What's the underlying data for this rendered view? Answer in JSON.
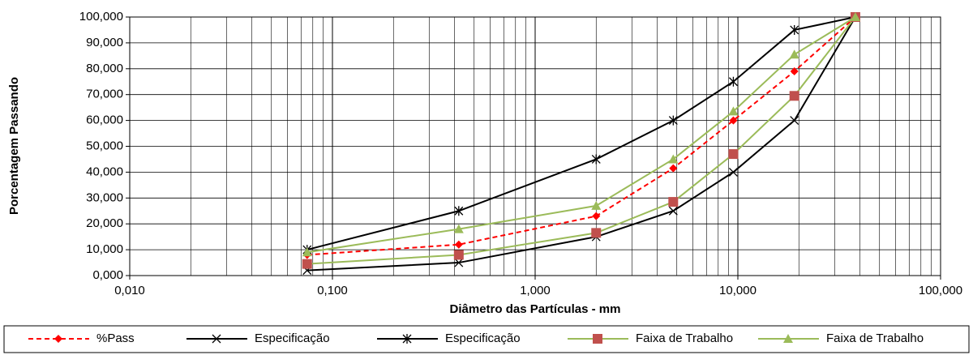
{
  "chart_data": {
    "type": "line",
    "xscale": "log",
    "xlabel": "Diâmetro das Partículas - mm",
    "ylabel": "Porcentagem Passando",
    "x": [
      0.075,
      0.42,
      2,
      4.8,
      9.5,
      19,
      38
    ],
    "xlim": [
      0.01,
      100
    ],
    "xticks": [
      {
        "value": 0.01,
        "label": "0,010"
      },
      {
        "value": 0.1,
        "label": "0,100"
      },
      {
        "value": 1,
        "label": "1,000"
      },
      {
        "value": 10,
        "label": "10,000"
      },
      {
        "value": 100,
        "label": "100,000"
      }
    ],
    "ylim": [
      0,
      100
    ],
    "yticks": [
      {
        "value": 0,
        "label": "0,000"
      },
      {
        "value": 10,
        "label": "10,000"
      },
      {
        "value": 20,
        "label": "20,000"
      },
      {
        "value": 30,
        "label": "30,000"
      },
      {
        "value": 40,
        "label": "40,000"
      },
      {
        "value": 50,
        "label": "50,000"
      },
      {
        "value": 60,
        "label": "60,000"
      },
      {
        "value": 70,
        "label": "70,000"
      },
      {
        "value": 80,
        "label": "80,000"
      },
      {
        "value": 90,
        "label": "90,000"
      },
      {
        "value": 100,
        "label": "100,000"
      }
    ],
    "grid": true,
    "minor_grid": true,
    "legend": "bottom",
    "series": [
      {
        "name": "%Pass",
        "color": "#ff0000",
        "marker": "diamond",
        "marker_color": "#ff0000",
        "linestyle": "dashed",
        "values": [
          8,
          12,
          23,
          41.5,
          60,
          79,
          100
        ]
      },
      {
        "name": "Especificação",
        "color": "#000000",
        "marker": "x",
        "marker_color": "#000000",
        "linestyle": "solid",
        "values": [
          2,
          5,
          15,
          25,
          40,
          60,
          100
        ]
      },
      {
        "name": "Especificação",
        "color": "#000000",
        "marker": "star",
        "marker_color": "#000000",
        "linestyle": "solid",
        "values": [
          10,
          25,
          45,
          60,
          75,
          95,
          100
        ]
      },
      {
        "name": "Faixa de Trabalho",
        "color": "#9bbb59",
        "marker": "square",
        "marker_color": "#c0504d",
        "linestyle": "solid",
        "values": [
          4.5,
          8,
          16.5,
          28.5,
          47,
          69.5,
          100
        ]
      },
      {
        "name": "Faixa de Trabalho",
        "color": "#9bbb59",
        "marker": "triangle",
        "marker_color": "#9bbb59",
        "linestyle": "solid",
        "values": [
          9,
          18,
          27,
          45,
          63.5,
          85.5,
          100
        ]
      }
    ]
  }
}
